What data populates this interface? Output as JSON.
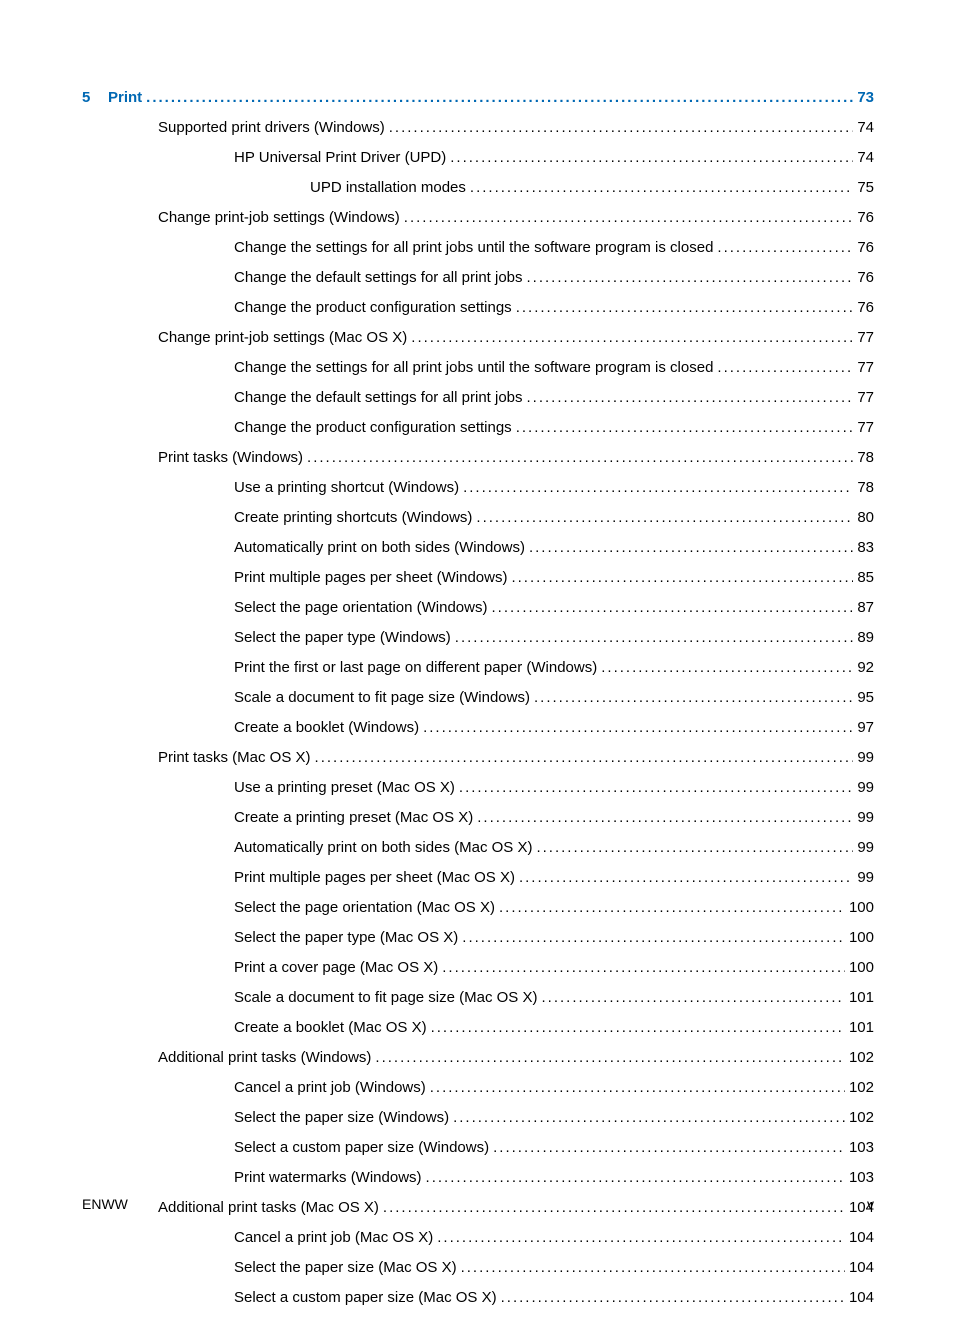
{
  "colors": {
    "link_blue": "#0068b3",
    "text": "#000000",
    "background": "#ffffff"
  },
  "typography": {
    "body_fontsize_pt": 11,
    "footer_fontsize_pt": 10,
    "font_family": "Arial"
  },
  "chapter": {
    "number": "5",
    "title": "Print",
    "page": "73"
  },
  "toc": [
    {
      "level": 1,
      "title": "Supported print drivers (Windows)",
      "page": "74"
    },
    {
      "level": 2,
      "title": "HP Universal Print Driver (UPD)",
      "page": "74"
    },
    {
      "level": 3,
      "title": "UPD installation modes",
      "page": "75"
    },
    {
      "level": 1,
      "title": "Change print-job settings (Windows)",
      "page": "76"
    },
    {
      "level": 2,
      "title": "Change the settings for all print jobs until the software program is closed",
      "page": "76"
    },
    {
      "level": 2,
      "title": "Change the default settings for all print jobs",
      "page": "76"
    },
    {
      "level": 2,
      "title": "Change the product configuration settings",
      "page": "76"
    },
    {
      "level": 1,
      "title": "Change print-job settings (Mac OS X)",
      "page": "77"
    },
    {
      "level": 2,
      "title": "Change the settings for all print jobs until the software program is closed",
      "page": "77"
    },
    {
      "level": 2,
      "title": "Change the default settings for all print jobs",
      "page": "77"
    },
    {
      "level": 2,
      "title": "Change the product configuration settings",
      "page": "77"
    },
    {
      "level": 1,
      "title": "Print tasks (Windows)",
      "page": "78"
    },
    {
      "level": 2,
      "title": "Use a printing shortcut (Windows)",
      "page": "78"
    },
    {
      "level": 2,
      "title": "Create printing shortcuts (Windows)",
      "page": "80"
    },
    {
      "level": 2,
      "title": "Automatically print on both sides (Windows)",
      "page": "83"
    },
    {
      "level": 2,
      "title": "Print multiple pages per sheet (Windows)",
      "page": "85"
    },
    {
      "level": 2,
      "title": "Select the page orientation (Windows)",
      "page": "87"
    },
    {
      "level": 2,
      "title": "Select the paper type (Windows)",
      "page": "89"
    },
    {
      "level": 2,
      "title": "Print the first or last page on different paper (Windows)",
      "page": "92"
    },
    {
      "level": 2,
      "title": "Scale a document to fit page size (Windows)",
      "page": "95"
    },
    {
      "level": 2,
      "title": "Create a booklet (Windows)",
      "page": "97"
    },
    {
      "level": 1,
      "title": "Print tasks (Mac OS X)",
      "page": "99"
    },
    {
      "level": 2,
      "title": "Use a printing preset (Mac OS X)",
      "page": "99"
    },
    {
      "level": 2,
      "title": "Create a printing preset (Mac OS X)",
      "page": "99"
    },
    {
      "level": 2,
      "title": "Automatically print on both sides (Mac OS X)",
      "page": "99"
    },
    {
      "level": 2,
      "title": "Print multiple pages per sheet (Mac OS X)",
      "page": "99"
    },
    {
      "level": 2,
      "title": "Select the page orientation (Mac OS X)",
      "page": "100"
    },
    {
      "level": 2,
      "title": "Select the paper type (Mac OS X)",
      "page": "100"
    },
    {
      "level": 2,
      "title": "Print a cover page (Mac OS X)",
      "page": "100"
    },
    {
      "level": 2,
      "title": "Scale a document to fit page size (Mac OS X)",
      "page": "101"
    },
    {
      "level": 2,
      "title": "Create a booklet (Mac OS X)",
      "page": "101"
    },
    {
      "level": 1,
      "title": "Additional print tasks (Windows)",
      "page": "102"
    },
    {
      "level": 2,
      "title": "Cancel a print job (Windows)",
      "page": "102"
    },
    {
      "level": 2,
      "title": "Select the paper size (Windows)",
      "page": "102"
    },
    {
      "level": 2,
      "title": "Select a custom paper size (Windows)",
      "page": "103"
    },
    {
      "level": 2,
      "title": "Print watermarks (Windows)",
      "page": "103"
    },
    {
      "level": 1,
      "title": "Additional print tasks (Mac OS X)",
      "page": "104"
    },
    {
      "level": 2,
      "title": "Cancel a print job (Mac OS X)",
      "page": "104"
    },
    {
      "level": 2,
      "title": "Select the paper size (Mac OS X)",
      "page": "104"
    },
    {
      "level": 2,
      "title": "Select a custom paper size (Mac OS X)",
      "page": "104"
    }
  ],
  "footer": {
    "left": "ENWW",
    "right": "v"
  }
}
